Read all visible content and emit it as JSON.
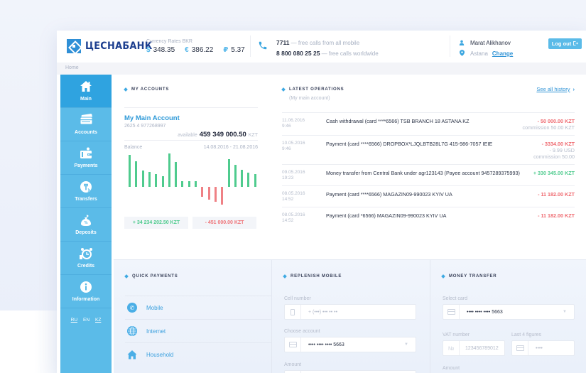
{
  "header": {
    "bank_name": "ЦЕСНАБАНК",
    "rates": {
      "title": "Currency Rates BKR",
      "items": [
        {
          "symbol": "$",
          "value": "348.35"
        },
        {
          "symbol": "€",
          "value": "386.22"
        },
        {
          "symbol": "₽",
          "value": "5.37"
        }
      ]
    },
    "phones": [
      {
        "number": "7711",
        "note": " — free calls from all mobile"
      },
      {
        "number": "8 800 080 25 25",
        "note": " — free calls worldwide"
      }
    ],
    "user": {
      "name": "Marat Alikhanov",
      "city": "Astana",
      "change_label": "Change"
    },
    "logout_label": "Log out"
  },
  "breadcrumb": {
    "current": "Home"
  },
  "sidebar": {
    "items": [
      {
        "label": "Main",
        "icon": "home-icon",
        "active": true
      },
      {
        "label": "Accounts",
        "icon": "cards-icon"
      },
      {
        "label": "Payments",
        "icon": "wallet-icon"
      },
      {
        "label": "Transfers",
        "icon": "transfer-coin-icon"
      },
      {
        "label": "Deposits",
        "icon": "money-bag-icon"
      },
      {
        "label": "Credits",
        "icon": "alarm-clock-coins-icon"
      },
      {
        "label": "Information",
        "icon": "info-icon"
      }
    ],
    "languages": [
      "RU",
      "EN",
      "KZ"
    ]
  },
  "accounts": {
    "title": "MY ACCOUNTS",
    "account_name": "My Main Account",
    "account_number": "2625 4 977268997",
    "available_label": "available",
    "available_amount": "459 349 000.50",
    "currency": "KZT",
    "balance_label": "Balance",
    "period": "14.08.2016 - 21.08.2016",
    "income_total": "+ 34 234 202.50 KZT",
    "expense_total": "- 451 000.00 KZT"
  },
  "chart_data": {
    "type": "bar",
    "title": "Balance",
    "xlabel": "14.08.2016 - 21.08.2016",
    "ylabel": "",
    "values": [
      45,
      36,
      23,
      21,
      18,
      15,
      47,
      35,
      8,
      8,
      8,
      -14,
      -18,
      -21,
      -25,
      39,
      31,
      24,
      20,
      18
    ],
    "colors": {
      "positive": "#4fcb8e",
      "negative": "#ef8185"
    },
    "grid": false,
    "legend": "none"
  },
  "operations": {
    "title": "LATEST OPERATIONS",
    "subtitle": "(My main account)",
    "see_all_label": "See all history",
    "items": [
      {
        "date": "11.06.2016",
        "time": "9:46",
        "description": "Cash withdrawal (card ****6566) TSB BRANCH 18 ASTANA KZ",
        "amount": "- 50 000.00 KZT",
        "type": "neg",
        "sub": [
          "commission 50.00 KZT"
        ]
      },
      {
        "date": "10.05.2016",
        "time": "9:46",
        "description": "Payment (card ****6566) DROPBOX*LJQLBTB28L7G 415-986-7057 IEIE",
        "amount": "- 3334.00 KZT",
        "type": "neg",
        "sub": [
          "- 9.99 USD",
          "commission 50.00"
        ]
      },
      {
        "date": "09.05.2016",
        "time": "19:23",
        "description": "Money transfer from Central Bank under agr123143 (Payee account 9457289375993)",
        "amount": "+ 330 345.00 KZT",
        "type": "pos",
        "sub": []
      },
      {
        "date": "08.05.2016",
        "time": "14:52",
        "description": "Payment (card ****6566) MAGAZIN09-990023 KYIV UA",
        "amount": "- 11 182.00 KZT",
        "type": "neg",
        "sub": []
      },
      {
        "date": "08.05.2016",
        "time": "14:52",
        "description": "Payment (card *6566) MAGAZIN09-990023 KYIV UA",
        "amount": "- 11 182.00 KZT",
        "type": "neg",
        "sub": []
      }
    ]
  },
  "quick_payments": {
    "title": "QUICK PAYMENTS",
    "items": [
      {
        "label": "Mobile",
        "icon": "phone-bubble-icon"
      },
      {
        "label": "Internet",
        "icon": "globe-icon"
      },
      {
        "label": "Household",
        "icon": "house-icon"
      }
    ]
  },
  "replenish_mobile": {
    "title": "REPLENISH MOBILE",
    "cell_label": "Cell number",
    "cell_placeholder": "+ (•••) ••• •• ••",
    "account_label": "Choose account",
    "account_value": "•••• •••• •••• 5663",
    "amount_label": "Amount"
  },
  "money_transfer": {
    "title": "MONEY TRANSFER",
    "card_label": "Select card",
    "card_value": "•••• •••• •••• 5663",
    "vat_label": "VAT number",
    "vat_prefix": "№",
    "vat_value": "123456789012",
    "last4_label": "Last 4 figures",
    "last4_placeholder": "••••",
    "amount_label": "Amount"
  }
}
